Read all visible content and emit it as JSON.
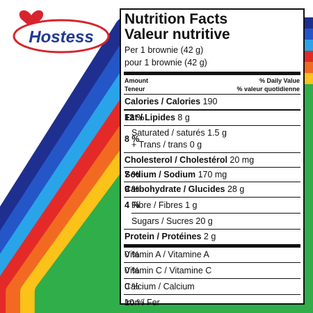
{
  "logo": "Hostess",
  "label": {
    "title_en": "Nutrition Facts",
    "title_fr": "Valeur nutritive",
    "serving": [
      "Per 1 brownie (42 g)",
      "pour 1 brownie (42 g)"
    ],
    "header": {
      "amount": "Amount",
      "teneur": "Teneur",
      "dv": "% Daily Value",
      "dv_fr": "% valeur quotidienne"
    },
    "rows": [
      {
        "name": "Calories / Calories",
        "amount": "190"
      },
      {
        "name": "Fat / Lipides",
        "amount": "8 g",
        "dv": "12 %"
      },
      {
        "lines": [
          "Saturated / saturés 1.5 g",
          "+ Trans / trans 0 g"
        ],
        "dv": "8 %"
      },
      {
        "name": "Cholesterol / Cholestérol",
        "amount": "20 mg"
      },
      {
        "name": "Sodium / Sodium",
        "amount": "170 mg",
        "dv": "7 %"
      },
      {
        "name": "Carbohydrate / Glucides",
        "amount": "28 g",
        "dv": "9 %"
      },
      {
        "name": "Fibre / Fibres",
        "amount": "1 g",
        "dv": "4 %"
      },
      {
        "name": "Sugars / Sucres",
        "amount": "20 g"
      },
      {
        "name": "Protein / Protéines",
        "amount": "2 g"
      },
      {
        "name": "Vitamin A / Vitamine A",
        "dv": "0 %"
      },
      {
        "name": "Vitamin C / Vitamine C",
        "dv": "0 %"
      },
      {
        "name": "Calcium / Calcium",
        "dv": "0 %"
      },
      {
        "name": "Iron / Fer",
        "dv": "10 %"
      }
    ]
  }
}
